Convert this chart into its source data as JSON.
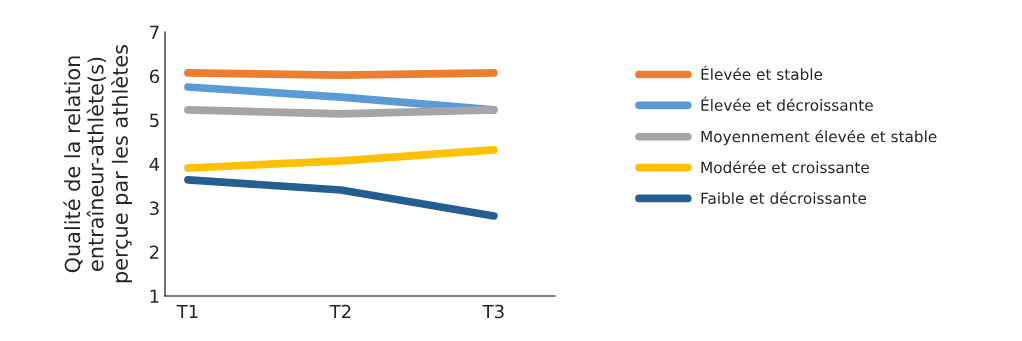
{
  "chart_data": {
    "type": "line",
    "ylabel": "Qualité de la relation\nentraîneur-athlète(s)\nperçue par les athlètes",
    "categories": [
      "T1",
      "T2",
      "T3"
    ],
    "series": [
      {
        "name": "Élevée et stable",
        "color": "#ed7d31",
        "values": [
          6.07,
          6.02,
          6.07
        ]
      },
      {
        "name": "Élevée et décroissante",
        "color": "#5b9bd5",
        "values": [
          5.75,
          5.52,
          5.23
        ]
      },
      {
        "name": "Moyennement élevée et stable",
        "color": "#a5a5a5",
        "values": [
          5.23,
          5.14,
          5.23
        ]
      },
      {
        "name": "Modérée et croissante",
        "color": "#ffc000",
        "values": [
          3.91,
          4.07,
          4.32
        ]
      },
      {
        "name": "Faible et décroissante",
        "color": "#255e91",
        "values": [
          3.64,
          3.41,
          2.82
        ]
      }
    ],
    "ylim": [
      1,
      7
    ],
    "yticks": [
      1,
      2,
      3,
      4,
      5,
      6,
      7
    ],
    "grid": false,
    "legend": "right",
    "marker": "none",
    "line_style": "solid"
  }
}
